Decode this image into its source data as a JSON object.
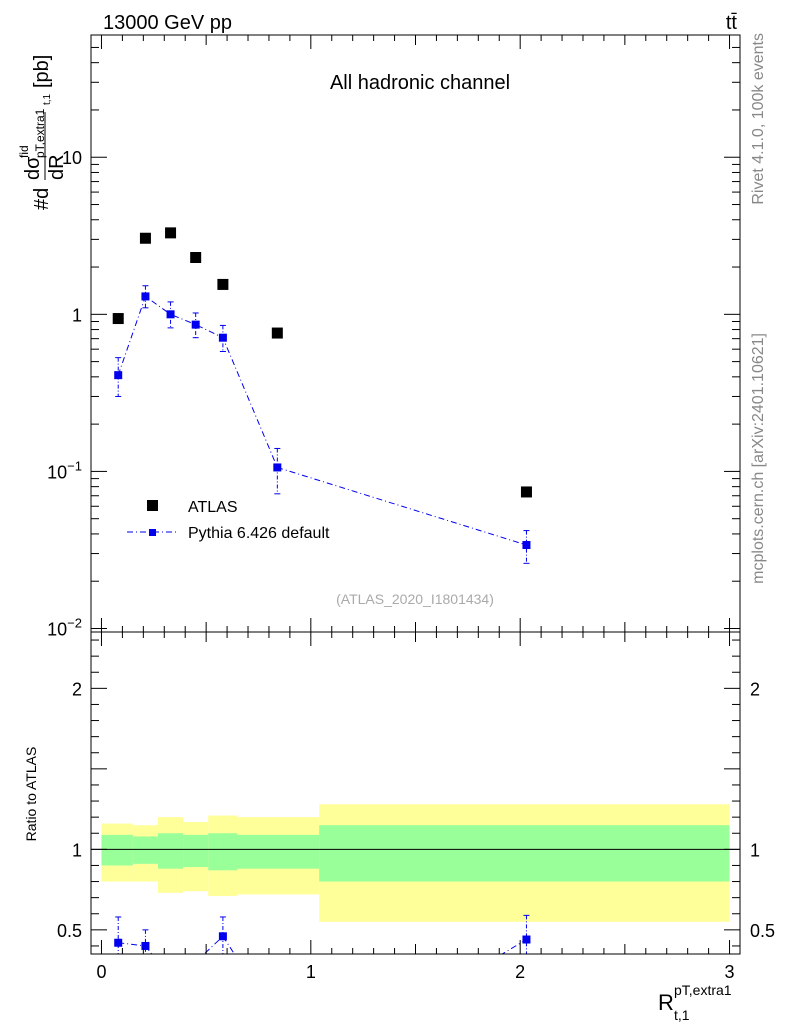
{
  "header": {
    "energy_label": "13000 GeV pp",
    "process_label": "tt̄",
    "side_label_top": "Rivet 4.1.0,  100k events",
    "side_label_bottom": "mcplots.cern.ch [arXiv:2401.10621]"
  },
  "colors": {
    "atlas": "#000000",
    "pythia": "#0000ee",
    "band_outer": "#ffff99",
    "band_inner": "#99ff99"
  },
  "chart_data": [
    {
      "type": "scatter",
      "title": "All hadronic channel",
      "watermark": "(ATLAS_2020_I1801434)",
      "ylabel": "#d dσfid/dR [pb]",
      "ylabel_parts": {
        "prefix": "#d",
        "numerator": "dσ",
        "num_sup": "fid",
        "num_sub": "pT,extra1",
        "num_sub2": "t,1",
        "denominator": "dR",
        "units": "[pb]"
      },
      "yscale": "log",
      "xlim": [
        -0.05,
        3.05
      ],
      "ylim": [
        0.0095,
        60
      ],
      "y_ticks": [
        {
          "value": 0.01,
          "label": "10",
          "sup": "−2"
        },
        {
          "value": 0.1,
          "label": "10",
          "sup": "−1"
        },
        {
          "value": 1,
          "label": "1",
          "sup": ""
        },
        {
          "value": 10,
          "label": "10",
          "sup": ""
        }
      ],
      "legend_position": "lower-left",
      "series": [
        {
          "name": "ATLAS",
          "style": "markers",
          "x": [
            0.08,
            0.21,
            0.33,
            0.45,
            0.58,
            0.84,
            2.03
          ],
          "y": [
            0.94,
            3.05,
            3.3,
            2.3,
            1.55,
            0.76,
            0.074
          ]
        },
        {
          "name": "Pythia 6.426 default",
          "style": "markers+dashdot-line",
          "x": [
            0.08,
            0.21,
            0.33,
            0.45,
            0.58,
            0.84,
            2.03
          ],
          "y": [
            0.41,
            1.3,
            1.0,
            0.86,
            0.71,
            0.106,
            0.034
          ],
          "yerr_low": [
            0.11,
            0.2,
            0.18,
            0.15,
            0.13,
            0.034,
            0.008
          ],
          "yerr_high": [
            0.12,
            0.22,
            0.2,
            0.16,
            0.14,
            0.034,
            0.008
          ]
        }
      ]
    },
    {
      "type": "ratio",
      "ylabel": "Ratio to ATLAS",
      "xlabel": "R",
      "xlabel_sup": "pT,extra1",
      "xlabel_sub": "t,1",
      "xlim": [
        -0.05,
        3.05
      ],
      "ylim": [
        0.35,
        2.35
      ],
      "x_ticks": [
        {
          "value": 0,
          "label": "0"
        },
        {
          "value": 1,
          "label": "1"
        },
        {
          "value": 2,
          "label": "2"
        },
        {
          "value": 3,
          "label": "3"
        }
      ],
      "y_ticks": [
        {
          "value": 0.5,
          "label": "0.5"
        },
        {
          "value": 1,
          "label": "1"
        },
        {
          "value": 2,
          "label": "2"
        }
      ],
      "bins": [
        0.0,
        0.15,
        0.27,
        0.39,
        0.51,
        0.65,
        1.04,
        3.0
      ],
      "band_outer": [
        [
          0.8,
          1.16
        ],
        [
          0.8,
          1.15
        ],
        [
          0.73,
          1.2
        ],
        [
          0.74,
          1.17
        ],
        [
          0.71,
          1.21
        ],
        [
          0.72,
          1.2
        ],
        [
          0.55,
          1.28
        ]
      ],
      "band_inner": [
        [
          0.9,
          1.09
        ],
        [
          0.91,
          1.08
        ],
        [
          0.88,
          1.1
        ],
        [
          0.89,
          1.09
        ],
        [
          0.87,
          1.1
        ],
        [
          0.88,
          1.09
        ],
        [
          0.8,
          1.15
        ]
      ],
      "series": [
        {
          "name": "Pythia 6.426 default",
          "x": [
            0.08,
            0.21,
            0.58,
            2.03
          ],
          "y": [
            0.42,
            0.4,
            0.46,
            0.44
          ],
          "yerr_low": [
            0.12,
            0.12,
            0.11,
            0.11
          ],
          "yerr_high": [
            0.16,
            0.1,
            0.12,
            0.15
          ],
          "segments_toward_x": [
            0.08,
            0.45,
            1.85
          ]
        }
      ]
    }
  ]
}
